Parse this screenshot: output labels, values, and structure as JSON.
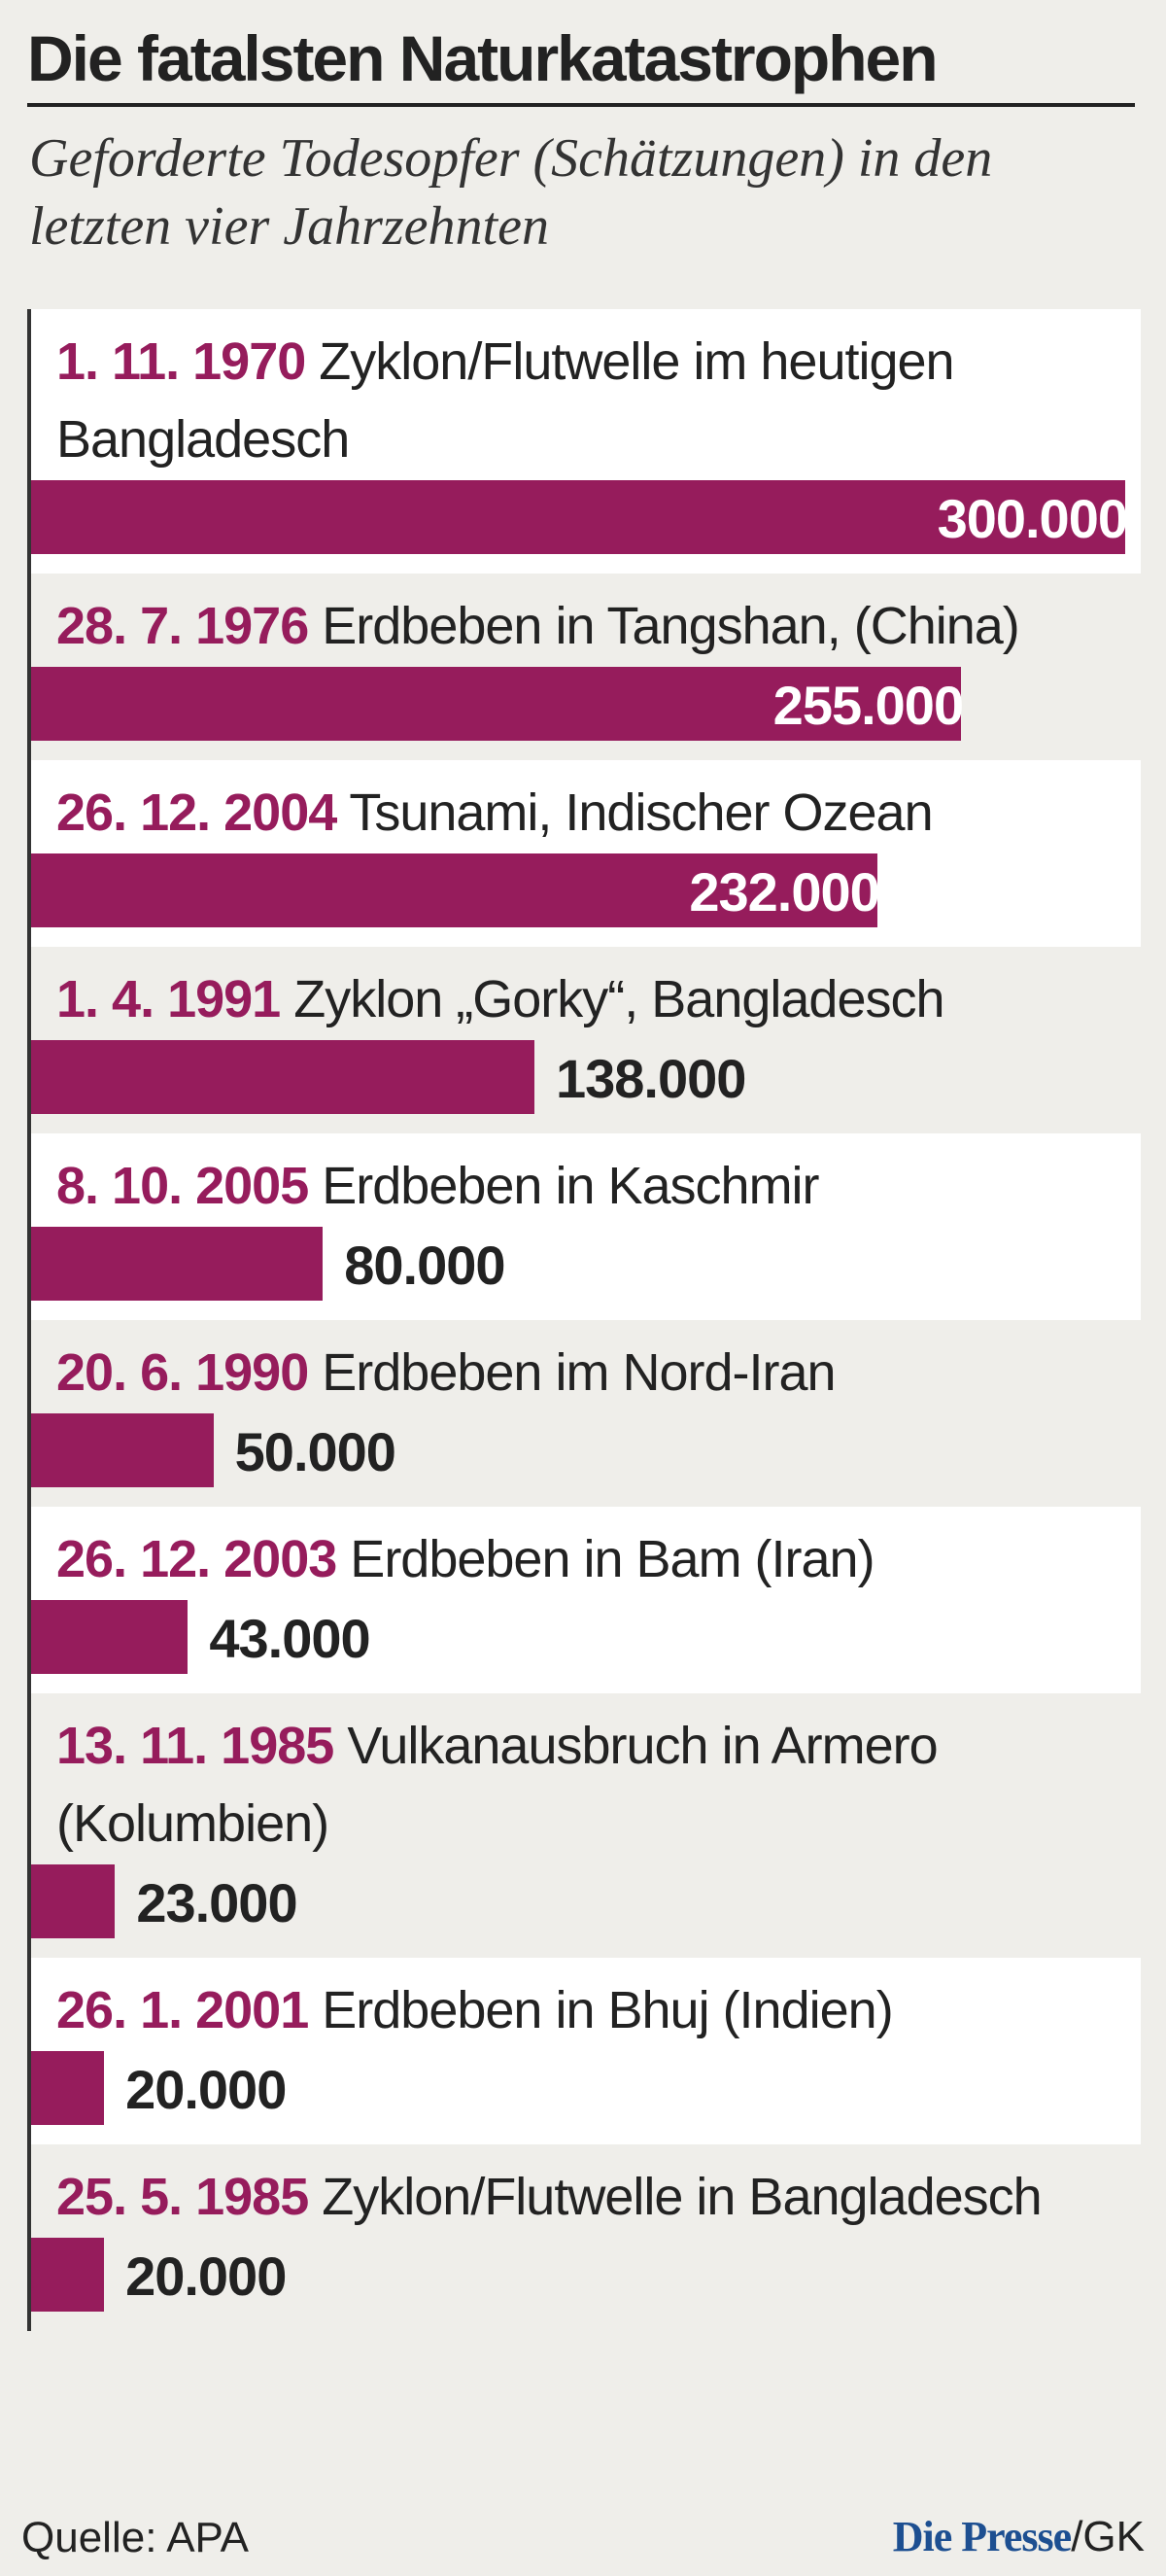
{
  "chart_data": {
    "type": "bar",
    "title": "Die fatalsten Naturkatastrophen",
    "subtitle": "Geforderte Todesopfer (Schätzungen) in den letzten vier Jahrzehnten",
    "dates": [
      "1. 11. 1970",
      "28. 7. 1976",
      "26. 12. 2004",
      "1. 4. 1991",
      "8. 10. 2005",
      "20. 6. 1990",
      "26. 12. 2003",
      "13. 11. 1985",
      "26. 1. 2001",
      "25. 5. 1985"
    ],
    "categories": [
      "Zyklon/Flutwelle im heutigen Bangladesch",
      "Erdbeben in Tangshan, (China)",
      "Tsunami, Indischer Ozean",
      "Zyklon „Gorky“, Bangladesch",
      "Erdbeben in Kaschmir",
      "Erdbeben im Nord-Iran",
      "Erdbeben in Bam (Iran)",
      "Vulkanausbruch in Armero (Kolumbien)",
      "Erdbeben in Bhuj (Indien)",
      "Zyklon/Flutwelle in Bangladesch"
    ],
    "values": [
      300000,
      255000,
      232000,
      138000,
      80000,
      50000,
      43000,
      23000,
      20000,
      20000
    ],
    "value_labels": [
      "300.000",
      "255.000",
      "232.000",
      "138.000",
      "80.000",
      "50.000",
      "43.000",
      "23.000",
      "20.000",
      "20.000"
    ],
    "color": "#961c5c",
    "source": "Quelle: APA",
    "brand": "Die Presse",
    "credit": "/GK"
  }
}
